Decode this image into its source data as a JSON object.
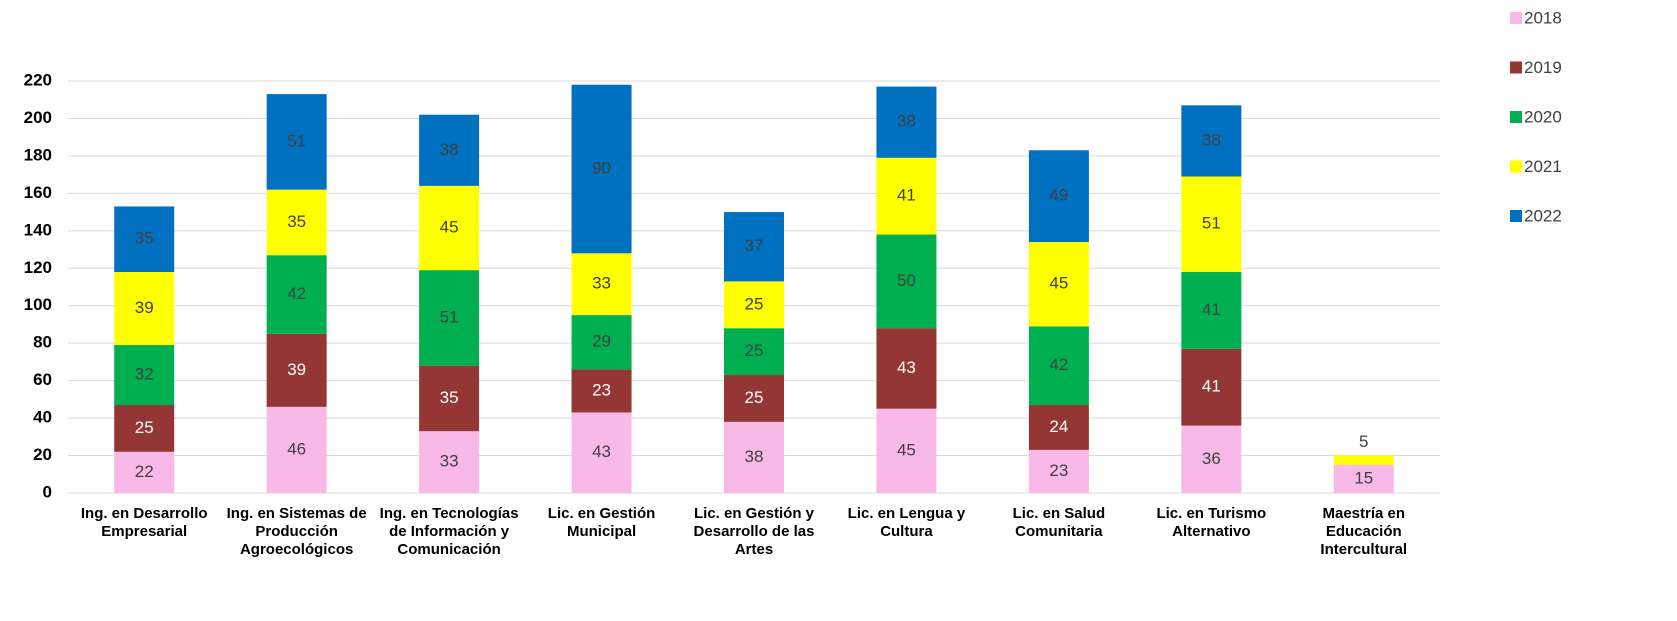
{
  "chart_data": {
    "type": "stacked_bar",
    "categories": [
      "Ing. en Desarrollo Empresarial",
      "Ing. en Sistemas de Producción Agroecológicos",
      "Ing. en Tecnologías de Información y Comunicación",
      "Lic. en Gestión Municipal",
      "Lic. en Gestión y Desarrollo de las Artes",
      "Lic. en Lengua y Cultura",
      "Lic. en Salud Comunitaria",
      "Lic. en Turismo Alternativo",
      "Maestría en Educación Intercultural"
    ],
    "series": [
      {
        "name": "2018",
        "color": "#f9b9e8",
        "values": [
          22,
          46,
          33,
          43,
          38,
          45,
          23,
          36,
          15
        ]
      },
      {
        "name": "2019",
        "color": "#943634",
        "values": [
          25,
          39,
          35,
          23,
          25,
          43,
          24,
          41,
          null
        ]
      },
      {
        "name": "2020",
        "color": "#00b050",
        "values": [
          32,
          42,
          51,
          29,
          25,
          50,
          42,
          41,
          null
        ]
      },
      {
        "name": "2021",
        "color": "#ffff00",
        "values": [
          39,
          35,
          45,
          33,
          25,
          41,
          45,
          51,
          5
        ]
      },
      {
        "name": "2022",
        "color": "#0070c0",
        "values": [
          35,
          51,
          38,
          90,
          37,
          38,
          49,
          38,
          null
        ]
      }
    ],
    "ylim": [
      0,
      220
    ],
    "yticks": [
      0,
      20,
      40,
      60,
      80,
      100,
      120,
      140,
      160,
      180,
      200,
      220
    ],
    "grid": true,
    "legend": "right"
  }
}
